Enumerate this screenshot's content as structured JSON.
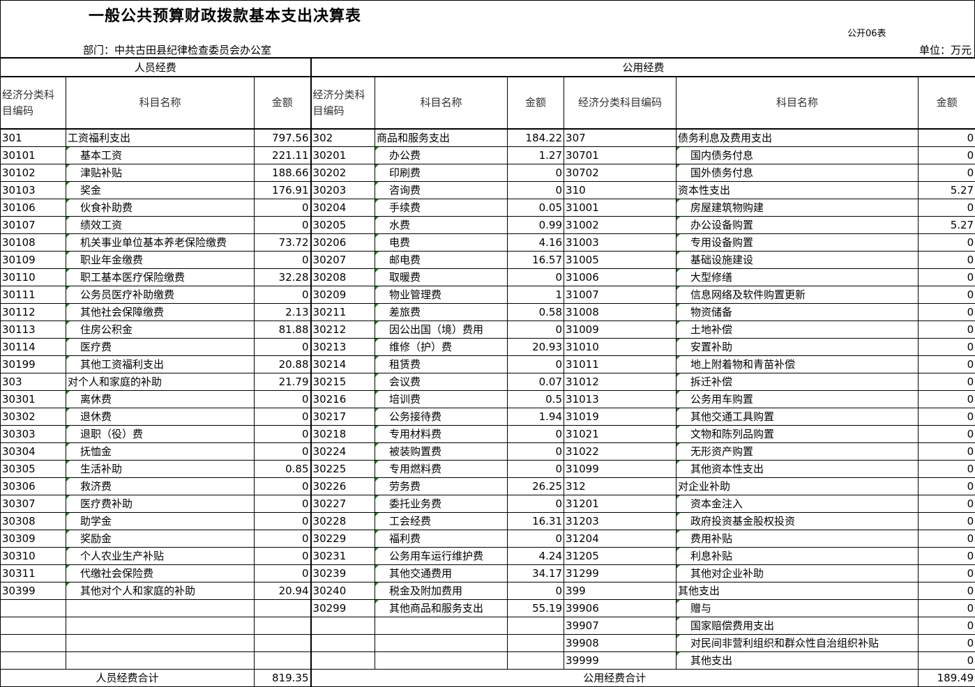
{
  "header": {
    "title": "一般公共预算财政拨款基本支出决算表",
    "form_no": "公开06表",
    "department": "部门：中共古田县纪律检查委员会办公室",
    "unit": "单位：万元"
  },
  "columns": {
    "personnel": "人员经费",
    "public": "公用经费",
    "code": "经济分类科目编码",
    "code_right": "经济分类科目编码",
    "name": "科目名称",
    "amount": "金额"
  },
  "personnel_rows": [
    {
      "code": "301",
      "name": "工资福利支出",
      "amount": "797.56",
      "sub": false
    },
    {
      "code": "30101",
      "name": "基本工资",
      "amount": "221.11",
      "sub": true
    },
    {
      "code": "30102",
      "name": "津贴补贴",
      "amount": "188.66",
      "sub": true
    },
    {
      "code": "30103",
      "name": "奖金",
      "amount": "176.91",
      "sub": true
    },
    {
      "code": "30106",
      "name": "伙食补助费",
      "amount": "0",
      "sub": true
    },
    {
      "code": "30107",
      "name": "绩效工资",
      "amount": "0",
      "sub": true
    },
    {
      "code": "30108",
      "name": "机关事业单位基本养老保险缴费",
      "amount": "73.72",
      "sub": true
    },
    {
      "code": "30109",
      "name": "职业年金缴费",
      "amount": "0",
      "sub": true
    },
    {
      "code": "30110",
      "name": "职工基本医疗保险缴费",
      "amount": "32.28",
      "sub": true
    },
    {
      "code": "30111",
      "name": "公务员医疗补助缴费",
      "amount": "0",
      "sub": true
    },
    {
      "code": "30112",
      "name": "其他社会保障缴费",
      "amount": "2.13",
      "sub": true
    },
    {
      "code": "30113",
      "name": "住房公积金",
      "amount": "81.88",
      "sub": true
    },
    {
      "code": "30114",
      "name": "医疗费",
      "amount": "0",
      "sub": true
    },
    {
      "code": "30199",
      "name": "其他工资福利支出",
      "amount": "20.88",
      "sub": true
    },
    {
      "code": "303",
      "name": "对个人和家庭的补助",
      "amount": "21.79",
      "sub": false
    },
    {
      "code": "30301",
      "name": "离休费",
      "amount": "0",
      "sub": true
    },
    {
      "code": "30302",
      "name": "退休费",
      "amount": "0",
      "sub": true
    },
    {
      "code": "30303",
      "name": "退职（役）费",
      "amount": "0",
      "sub": true
    },
    {
      "code": "30304",
      "name": "抚恤金",
      "amount": "0",
      "sub": true
    },
    {
      "code": "30305",
      "name": "生活补助",
      "amount": "0.85",
      "sub": true
    },
    {
      "code": "30306",
      "name": "救济费",
      "amount": "0",
      "sub": true
    },
    {
      "code": "30307",
      "name": "医疗费补助",
      "amount": "0",
      "sub": true
    },
    {
      "code": "30308",
      "name": "助学金",
      "amount": "0",
      "sub": true
    },
    {
      "code": "30309",
      "name": "奖励金",
      "amount": "0",
      "sub": true
    },
    {
      "code": "30310",
      "name": "个人农业生产补贴",
      "amount": "0",
      "sub": true
    },
    {
      "code": "30311",
      "name": "代缴社会保险费",
      "amount": "0",
      "sub": true
    },
    {
      "code": "30399",
      "name": "其他对个人和家庭的补助",
      "amount": "20.94",
      "sub": true
    }
  ],
  "goods_rows": [
    {
      "code": "302",
      "name": "商品和服务支出",
      "amount": "184.22",
      "sub": false
    },
    {
      "code": "30201",
      "name": "办公费",
      "amount": "1.27",
      "sub": true
    },
    {
      "code": "30202",
      "name": "印刷费",
      "amount": "0",
      "sub": true
    },
    {
      "code": "30203",
      "name": "咨询费",
      "amount": "0",
      "sub": true
    },
    {
      "code": "30204",
      "name": "手续费",
      "amount": "0.05",
      "sub": true
    },
    {
      "code": "30205",
      "name": "水费",
      "amount": "0.99",
      "sub": true
    },
    {
      "code": "30206",
      "name": "电费",
      "amount": "4.16",
      "sub": true
    },
    {
      "code": "30207",
      "name": "邮电费",
      "amount": "16.57",
      "sub": true
    },
    {
      "code": "30208",
      "name": "取暖费",
      "amount": "0",
      "sub": true
    },
    {
      "code": "30209",
      "name": "物业管理费",
      "amount": "1",
      "sub": true
    },
    {
      "code": "30211",
      "name": "差旅费",
      "amount": "0.58",
      "sub": true
    },
    {
      "code": "30212",
      "name": "因公出国（境）费用",
      "amount": "0",
      "sub": true
    },
    {
      "code": "30213",
      "name": "维修（护）费",
      "amount": "20.93",
      "sub": true
    },
    {
      "code": "30214",
      "name": "租赁费",
      "amount": "0",
      "sub": true
    },
    {
      "code": "30215",
      "name": "会议费",
      "amount": "0.07",
      "sub": true
    },
    {
      "code": "30216",
      "name": "培训费",
      "amount": "0.5",
      "sub": true
    },
    {
      "code": "30217",
      "name": "公务接待费",
      "amount": "1.94",
      "sub": true
    },
    {
      "code": "30218",
      "name": "专用材料费",
      "amount": "0",
      "sub": true
    },
    {
      "code": "30224",
      "name": "被装购置费",
      "amount": "0",
      "sub": true
    },
    {
      "code": "30225",
      "name": "专用燃料费",
      "amount": "0",
      "sub": true
    },
    {
      "code": "30226",
      "name": "劳务费",
      "amount": "26.25",
      "sub": true
    },
    {
      "code": "30227",
      "name": "委托业务费",
      "amount": "0",
      "sub": true
    },
    {
      "code": "30228",
      "name": "工会经费",
      "amount": "16.31",
      "sub": true
    },
    {
      "code": "30229",
      "name": "福利费",
      "amount": "0",
      "sub": true
    },
    {
      "code": "30231",
      "name": "公务用车运行维护费",
      "amount": "4.24",
      "sub": true
    },
    {
      "code": "30239",
      "name": "其他交通费用",
      "amount": "34.17",
      "sub": true
    },
    {
      "code": "30240",
      "name": "税金及附加费用",
      "amount": "0",
      "sub": true
    },
    {
      "code": "30299",
      "name": "其他商品和服务支出",
      "amount": "55.19",
      "sub": true
    }
  ],
  "other_rows": [
    {
      "code": "307",
      "name": "债务利息及费用支出",
      "amount": "0",
      "sub": false
    },
    {
      "code": "30701",
      "name": "国内债务付息",
      "amount": "0",
      "sub": true
    },
    {
      "code": "30702",
      "name": "国外债务付息",
      "amount": "0",
      "sub": true
    },
    {
      "code": "310",
      "name": "资本性支出",
      "amount": "5.27",
      "sub": false
    },
    {
      "code": "31001",
      "name": "房屋建筑物购建",
      "amount": "0",
      "sub": true
    },
    {
      "code": "31002",
      "name": "办公设备购置",
      "amount": "5.27",
      "sub": true
    },
    {
      "code": "31003",
      "name": "专用设备购置",
      "amount": "0",
      "sub": true
    },
    {
      "code": "31005",
      "name": "基础设施建设",
      "amount": "0",
      "sub": true
    },
    {
      "code": "31006",
      "name": "大型修缮",
      "amount": "0",
      "sub": true
    },
    {
      "code": "31007",
      "name": "信息网络及软件购置更新",
      "amount": "0",
      "sub": true
    },
    {
      "code": "31008",
      "name": "物资储备",
      "amount": "0",
      "sub": true
    },
    {
      "code": "31009",
      "name": "土地补偿",
      "amount": "0",
      "sub": true
    },
    {
      "code": "31010",
      "name": "安置补助",
      "amount": "0",
      "sub": true
    },
    {
      "code": "31011",
      "name": "地上附着物和青苗补偿",
      "amount": "0",
      "sub": true
    },
    {
      "code": "31012",
      "name": "拆迁补偿",
      "amount": "0",
      "sub": true
    },
    {
      "code": "31013",
      "name": "公务用车购置",
      "amount": "0",
      "sub": true
    },
    {
      "code": "31019",
      "name": "其他交通工具购置",
      "amount": "0",
      "sub": true
    },
    {
      "code": "31021",
      "name": "文物和陈列品购置",
      "amount": "0",
      "sub": true
    },
    {
      "code": "31022",
      "name": "无形资产购置",
      "amount": "0",
      "sub": true
    },
    {
      "code": "31099",
      "name": "其他资本性支出",
      "amount": "0",
      "sub": true
    },
    {
      "code": "312",
      "name": "对企业补助",
      "amount": "0",
      "sub": false
    },
    {
      "code": "31201",
      "name": "资本金注入",
      "amount": "0",
      "sub": true
    },
    {
      "code": "31203",
      "name": "政府投资基金股权投资",
      "amount": "0",
      "sub": true
    },
    {
      "code": "31204",
      "name": "费用补贴",
      "amount": "0",
      "sub": true
    },
    {
      "code": "31205",
      "name": "利息补贴",
      "amount": "0",
      "sub": true
    },
    {
      "code": "31299",
      "name": "其他对企业补助",
      "amount": "0",
      "sub": true
    },
    {
      "code": "399",
      "name": "其他支出",
      "amount": "0",
      "sub": false
    },
    {
      "code": "39906",
      "name": "赠与",
      "amount": "0",
      "sub": true
    },
    {
      "code": "39907",
      "name": "国家赔偿费用支出",
      "amount": "0",
      "sub": true
    },
    {
      "code": "39908",
      "name": "对民间非营利组织和群众性自治组织补贴",
      "amount": "0",
      "sub": true
    },
    {
      "code": "39999",
      "name": "其他支出",
      "amount": "0",
      "sub": true
    }
  ],
  "totals": {
    "personnel_label": "人员经费合计",
    "personnel_amount": "819.35",
    "public_label": "公用经费合计",
    "public_amount": "189.49"
  },
  "colors": {
    "indicator": "#1a8a1a",
    "grid": "#000000"
  }
}
